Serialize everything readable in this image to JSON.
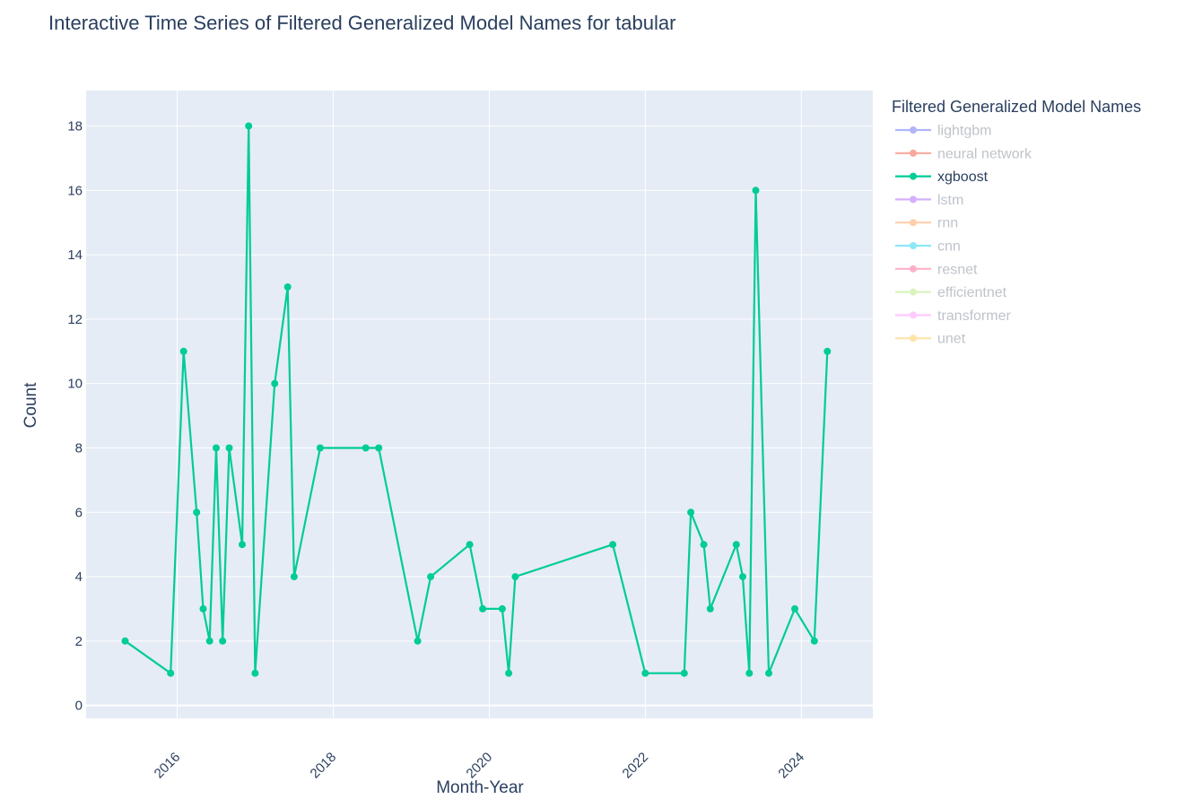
{
  "chart_data": {
    "type": "line",
    "title": "Interactive Time Series of Filtered Generalized Model Names for tabular",
    "xlabel": "Month-Year",
    "ylabel": "Count",
    "x_ticks": [
      "2016",
      "2018",
      "2020",
      "2022",
      "2024"
    ],
    "y_ticks": [
      "0",
      "2",
      "4",
      "6",
      "8",
      "10",
      "12",
      "14",
      "16",
      "18"
    ],
    "xlim": [
      "2014-11",
      "2024-12"
    ],
    "ylim": [
      -0.4,
      19.1
    ],
    "grid": true,
    "legend": {
      "title": "Filtered Generalized Model Names",
      "placement": "right",
      "items": [
        {
          "name": "lightgbm",
          "color": "#636efa",
          "visible": false
        },
        {
          "name": "neural network",
          "color": "#ef553b",
          "visible": false
        },
        {
          "name": "xgboost",
          "color": "#00cc96",
          "visible": true
        },
        {
          "name": "lstm",
          "color": "#ab63fa",
          "visible": false
        },
        {
          "name": "rnn",
          "color": "#ffa15a",
          "visible": false
        },
        {
          "name": "cnn",
          "color": "#19d3f3",
          "visible": false
        },
        {
          "name": "resnet",
          "color": "#ff6692",
          "visible": false
        },
        {
          "name": "efficientnet",
          "color": "#b6e880",
          "visible": false
        },
        {
          "name": "transformer",
          "color": "#ff97ff",
          "visible": false
        },
        {
          "name": "unet",
          "color": "#fecb52",
          "visible": false
        }
      ]
    },
    "series": [
      {
        "name": "xgboost",
        "color": "#00cc96",
        "points": [
          {
            "x": "2015-05",
            "y": 2
          },
          {
            "x": "2015-12",
            "y": 1
          },
          {
            "x": "2016-02",
            "y": 11
          },
          {
            "x": "2016-04",
            "y": 6
          },
          {
            "x": "2016-05",
            "y": 3
          },
          {
            "x": "2016-06",
            "y": 2
          },
          {
            "x": "2016-07",
            "y": 8
          },
          {
            "x": "2016-08",
            "y": 2
          },
          {
            "x": "2016-09",
            "y": 8
          },
          {
            "x": "2016-11",
            "y": 5
          },
          {
            "x": "2016-12",
            "y": 18
          },
          {
            "x": "2017-01",
            "y": 1
          },
          {
            "x": "2017-04",
            "y": 10
          },
          {
            "x": "2017-06",
            "y": 13
          },
          {
            "x": "2017-07",
            "y": 4
          },
          {
            "x": "2017-11",
            "y": 8
          },
          {
            "x": "2018-06",
            "y": 8
          },
          {
            "x": "2018-08",
            "y": 8
          },
          {
            "x": "2019-02",
            "y": 2
          },
          {
            "x": "2019-04",
            "y": 4
          },
          {
            "x": "2019-10",
            "y": 5
          },
          {
            "x": "2019-12",
            "y": 3
          },
          {
            "x": "2020-03",
            "y": 3
          },
          {
            "x": "2020-04",
            "y": 1
          },
          {
            "x": "2020-05",
            "y": 4
          },
          {
            "x": "2021-08",
            "y": 5
          },
          {
            "x": "2022-01",
            "y": 1
          },
          {
            "x": "2022-07",
            "y": 1
          },
          {
            "x": "2022-08",
            "y": 6
          },
          {
            "x": "2022-10",
            "y": 5
          },
          {
            "x": "2022-11",
            "y": 3
          },
          {
            "x": "2023-03",
            "y": 5
          },
          {
            "x": "2023-04",
            "y": 4
          },
          {
            "x": "2023-05",
            "y": 1
          },
          {
            "x": "2023-06",
            "y": 16
          },
          {
            "x": "2023-08",
            "y": 1
          },
          {
            "x": "2023-12",
            "y": 3
          },
          {
            "x": "2024-03",
            "y": 2
          },
          {
            "x": "2024-05",
            "y": 11
          }
        ]
      }
    ]
  }
}
